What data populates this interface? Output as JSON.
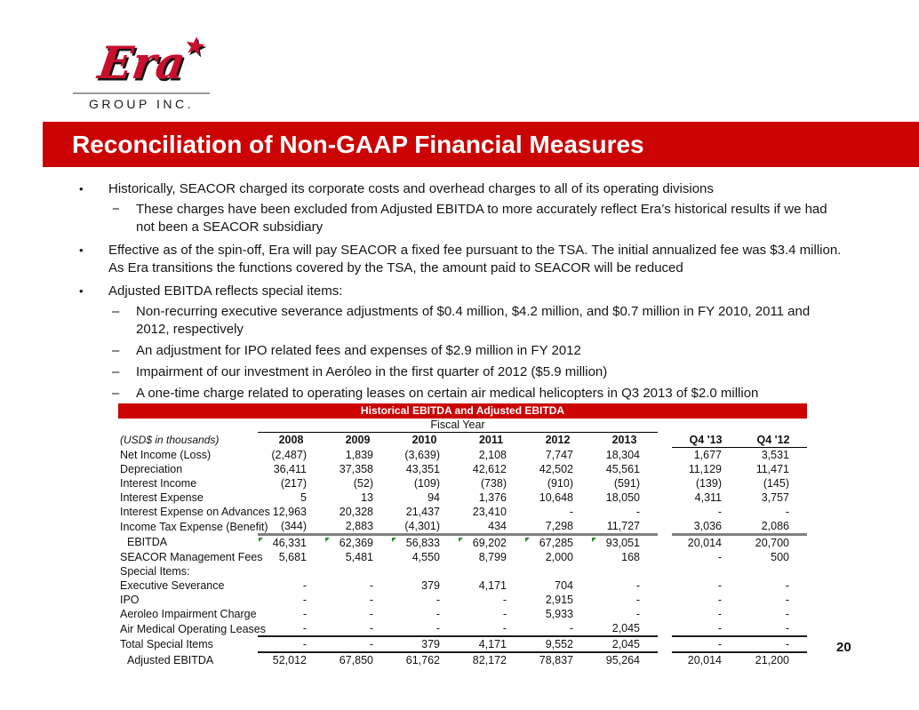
{
  "colors": {
    "accent_red": "#CB0303",
    "logo_red": "#C8102E",
    "flag_green": "#2E8B2E",
    "rule_gray": "#7F7F7F"
  },
  "logo": {
    "brand_script": "Era",
    "star": "★",
    "subtitle": "GROUP INC."
  },
  "title_banner": {
    "text": "Reconciliation of Non-GAAP Financial Measures"
  },
  "bullets": [
    {
      "level": 1,
      "marker": "•",
      "text": "Historically, SEACOR charged its corporate costs and overhead charges to all of its operating divisions"
    },
    {
      "level": 2,
      "marker": "−",
      "text": "These charges have been excluded from Adjusted EBITDA to more accurately reflect Era’s historical results if we had not been a SEACOR subsidiary"
    },
    {
      "level": 1,
      "marker": "•",
      "text": "Effective as of the spin-off, Era will pay SEACOR a fixed fee pursuant to the TSA. The initial annualized fee was $3.4 million. As Era transitions the functions covered by the TSA, the amount paid to SEACOR will be reduced"
    },
    {
      "level": 1,
      "marker": "•",
      "text": "Adjusted EBITDA reflects special items:"
    },
    {
      "level": 2,
      "marker": "–",
      "text": "Non-recurring executive severance adjustments of $0.4 million, $4.2 million, and $0.7 million in FY 2010, 2011 and 2012, respectively"
    },
    {
      "level": 2,
      "marker": "–",
      "text": "An adjustment for IPO related fees and expenses of $2.9 million in FY 2012"
    },
    {
      "level": 2,
      "marker": "–",
      "text": "Impairment of our investment in Aeróleo in the first quarter of 2012 ($5.9 million)"
    },
    {
      "level": 2,
      "marker": "–",
      "text": "A one-time charge related to operating leases on certain air medical helicopters in Q3 2013 of $2.0 million"
    }
  ],
  "table": {
    "banner": "Historical EBITDA and Adjusted EBITDA",
    "group_header": "Fiscal Year",
    "unit_label": "(USD$ in thousands)",
    "year_columns": [
      "2008",
      "2009",
      "2010",
      "2011",
      "2012",
      "2013"
    ],
    "quarter_columns": [
      "Q4 '13",
      "Q4 '12"
    ],
    "rows": [
      {
        "label": "Net Income (Loss)",
        "values": [
          "(2,487)",
          "1,839",
          "(3,639)",
          "2,108",
          "7,747",
          "18,304"
        ],
        "quarters": [
          "1,677",
          "3,531"
        ]
      },
      {
        "label": "Depreciation",
        "values": [
          "36,411",
          "37,358",
          "43,351",
          "42,612",
          "42,502",
          "45,561"
        ],
        "quarters": [
          "11,129",
          "11,471"
        ]
      },
      {
        "label": "Interest Income",
        "values": [
          "(217)",
          "(52)",
          "(109)",
          "(738)",
          "(910)",
          "(591)"
        ],
        "quarters": [
          "(139)",
          "(145)"
        ]
      },
      {
        "label": "Interest Expense",
        "values": [
          "5",
          "13",
          "94",
          "1,376",
          "10,648",
          "18,050"
        ],
        "quarters": [
          "4,311",
          "3,757"
        ]
      },
      {
        "label": "Interest Expense on Advances",
        "values": [
          "12,963",
          "20,328",
          "21,437",
          "23,410",
          "-",
          "-"
        ],
        "quarters": [
          "-",
          "-"
        ]
      },
      {
        "label": "Income Tax Expense (Benefit)",
        "rule": "thick",
        "values": [
          "(344)",
          "2,883",
          "(4,301)",
          "434",
          "7,298",
          "11,727"
        ],
        "quarters": [
          "3,036",
          "2,086"
        ]
      },
      {
        "label": "EBITDA",
        "indent": true,
        "flags": true,
        "values": [
          "46,331",
          "62,369",
          "56,833",
          "69,202",
          "67,285",
          "93,051"
        ],
        "quarters": [
          "20,014",
          "20,700"
        ]
      },
      {
        "label": "SEACOR Management Fees",
        "values": [
          "5,681",
          "5,481",
          "4,550",
          "8,799",
          "2,000",
          "168"
        ],
        "quarters": [
          "-",
          "500"
        ]
      },
      {
        "label": "Special Items:",
        "values": [
          "",
          "",
          "",
          "",
          "",
          ""
        ],
        "quarters": [
          "",
          ""
        ]
      },
      {
        "label": "Executive Severance",
        "values": [
          "-",
          "-",
          "379",
          "4,171",
          "704",
          "-"
        ],
        "quarters": [
          "-",
          "-"
        ]
      },
      {
        "label": "IPO",
        "values": [
          "-",
          "-",
          "-",
          "-",
          "2,915",
          "-"
        ],
        "quarters": [
          "-",
          "-"
        ]
      },
      {
        "label": "Aeroleo Impairment Charge",
        "values": [
          "-",
          "-",
          "-",
          "-",
          "5,933",
          "-"
        ],
        "quarters": [
          "-",
          "-"
        ]
      },
      {
        "label": "Air Medical Operating Leases",
        "rule": "thin",
        "values": [
          "-",
          "-",
          "-",
          "-",
          "-",
          "2,045"
        ],
        "quarters": [
          "-",
          "-"
        ]
      },
      {
        "label": "Total Special Items",
        "rule": "thin",
        "values": [
          "-",
          "-",
          "379",
          "4,171",
          "9,552",
          "2,045"
        ],
        "quarters": [
          "-",
          "-"
        ]
      },
      {
        "label": "Adjusted EBITDA",
        "indent": true,
        "values": [
          "52,012",
          "67,850",
          "61,762",
          "82,172",
          "78,837",
          "95,264"
        ],
        "quarters": [
          "20,014",
          "21,200"
        ]
      }
    ]
  },
  "page_number": "20"
}
